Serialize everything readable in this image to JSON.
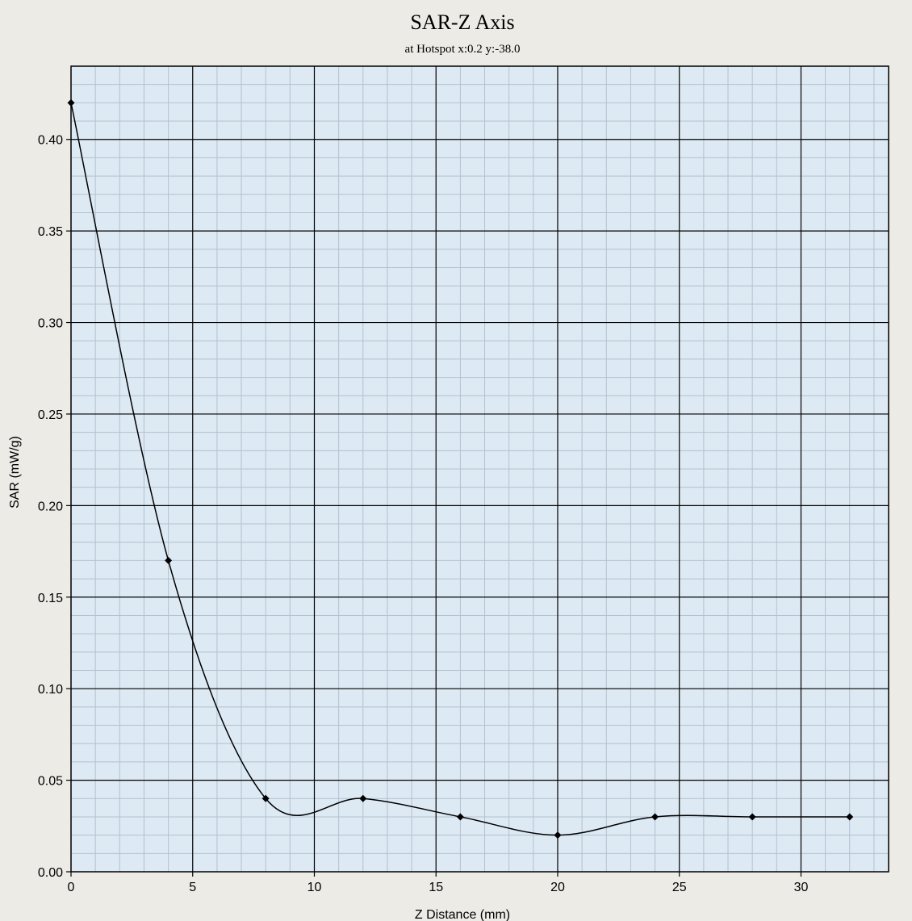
{
  "chart_data": {
    "type": "line",
    "title": "SAR-Z Axis",
    "subtitle": "at Hotspot x:0.2 y:-38.0",
    "xlabel": "Z Distance (mm)",
    "ylabel": "SAR (mW/g)",
    "xlim": [
      0,
      33.6
    ],
    "ylim": [
      0,
      0.44
    ],
    "x_ticks": [
      0,
      5,
      10,
      15,
      20,
      25,
      30
    ],
    "y_ticks": [
      0.0,
      0.05,
      0.1,
      0.15,
      0.2,
      0.25,
      0.3,
      0.35,
      0.4
    ],
    "x_tick_labels": [
      "0",
      "5",
      "10",
      "15",
      "20",
      "25",
      "30"
    ],
    "y_tick_labels": [
      "0.00",
      "0.05",
      "0.10",
      "0.15",
      "0.20",
      "0.25",
      "0.30",
      "0.35",
      "0.40"
    ],
    "grid": true,
    "legend": "none",
    "series": [
      {
        "x": [
          0,
          4,
          8,
          12,
          16,
          20,
          24,
          28,
          32
        ],
        "y": [
          0.42,
          0.17,
          0.04,
          0.04,
          0.03,
          0.02,
          0.03,
          0.03,
          0.03
        ],
        "color": "#000000"
      }
    ],
    "colors": {
      "plot_background": "#dde9f3",
      "page_background": "#ecebe6",
      "major_grid": "#000000",
      "minor_grid": "#b2c2d2",
      "line": "#000000"
    }
  }
}
